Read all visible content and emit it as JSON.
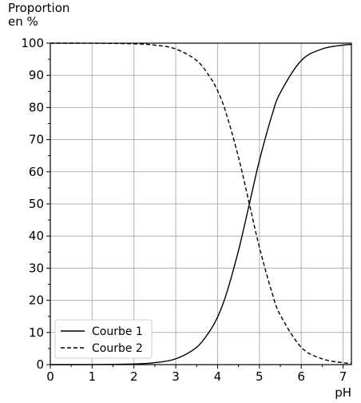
{
  "chart_data": {
    "type": "line",
    "ylabel": "Proportion\nen %",
    "xlabel": "pH",
    "xlim": [
      0,
      7.2
    ],
    "ylim": [
      0,
      100
    ],
    "xticks": [
      0,
      1,
      2,
      3,
      4,
      5,
      6,
      7
    ],
    "yticks": [
      0,
      10,
      20,
      30,
      40,
      50,
      60,
      70,
      80,
      90,
      100
    ],
    "grid": true,
    "legend_position": "bottom-left",
    "series": [
      {
        "name": "Courbe 1",
        "style": "solid",
        "color": "#000000",
        "x": [
          0,
          1,
          2,
          2.5,
          3,
          3.5,
          3.8,
          4,
          4.2,
          4.5,
          4.76,
          5,
          5.3,
          5.5,
          6,
          6.5,
          7,
          7.2
        ],
        "y": [
          0,
          0.02,
          0.2,
          0.6,
          1.8,
          5.4,
          10.2,
          14.8,
          21.6,
          35.5,
          50,
          63.5,
          77.6,
          84.6,
          94.6,
          98.2,
          99.4,
          99.6
        ]
      },
      {
        "name": "Courbe 2",
        "style": "dashed",
        "color": "#000000",
        "x": [
          0,
          1,
          2,
          2.5,
          3,
          3.5,
          3.8,
          4,
          4.2,
          4.5,
          4.76,
          5,
          5.3,
          5.5,
          6,
          6.5,
          7,
          7.2
        ],
        "y": [
          100,
          99.98,
          99.8,
          99.4,
          98.2,
          94.6,
          89.8,
          85.2,
          78.4,
          64.5,
          50,
          36.5,
          22.4,
          15.4,
          5.4,
          1.8,
          0.6,
          0.4
        ]
      }
    ]
  }
}
